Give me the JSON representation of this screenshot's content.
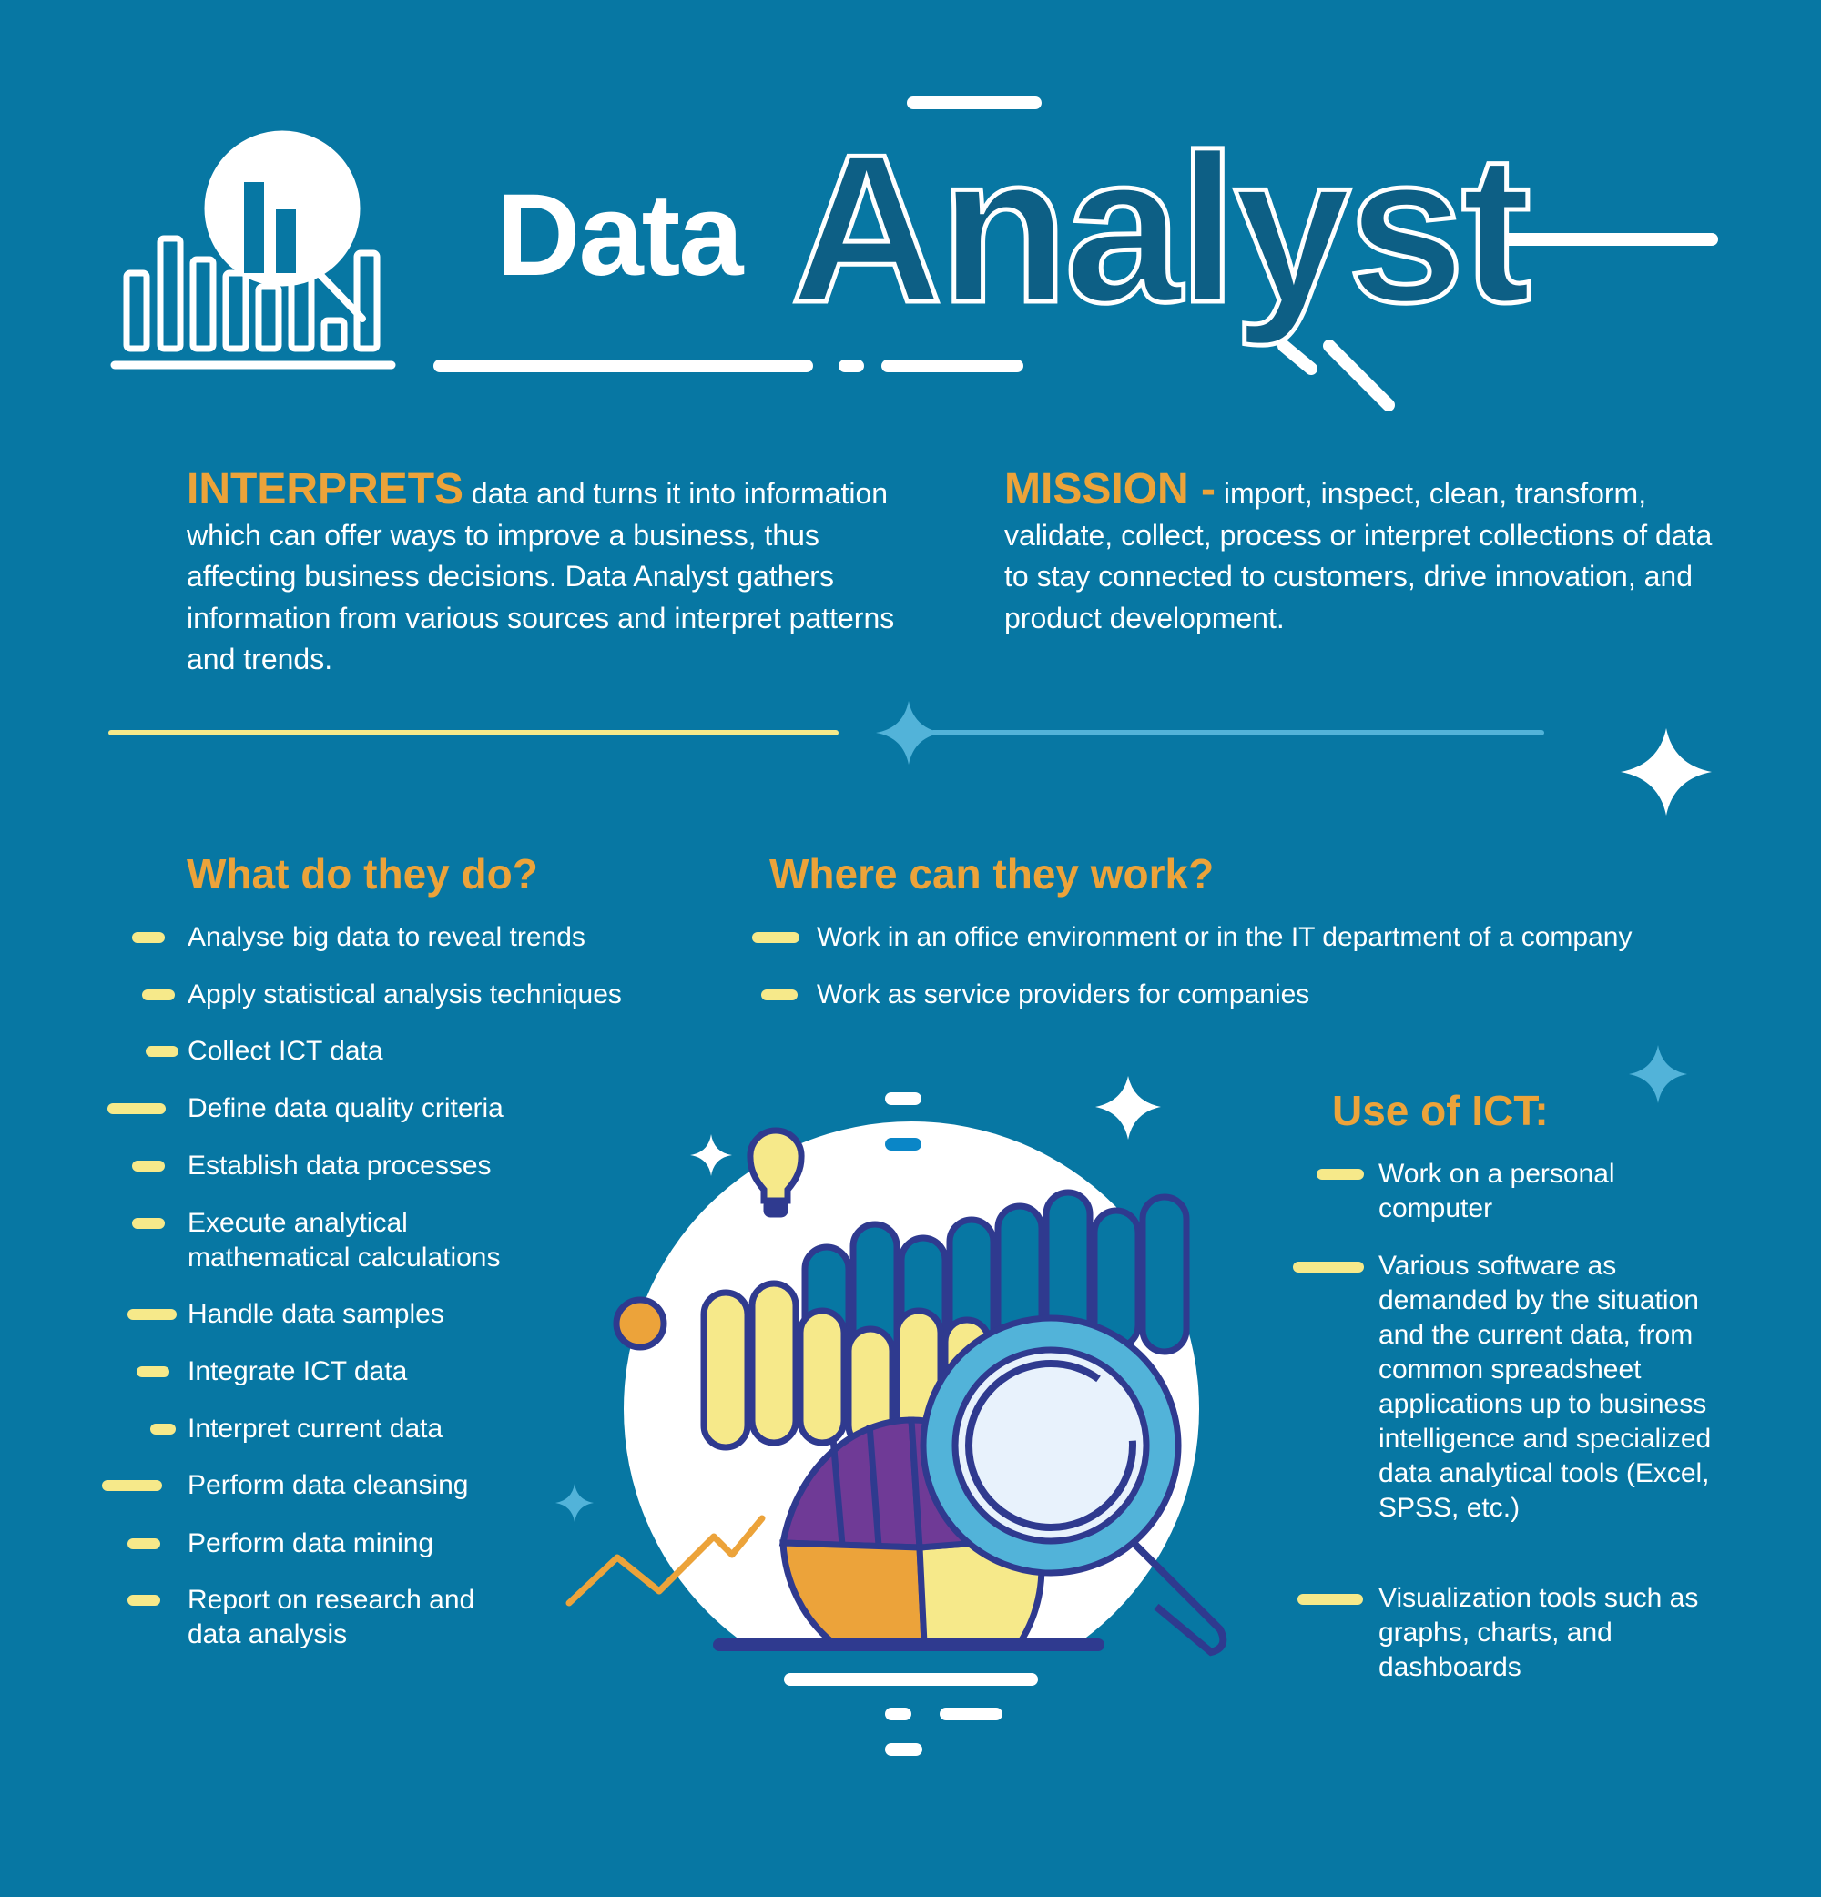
{
  "header": {
    "title_part1": "Data",
    "title_part2": "Analyst"
  },
  "interprets": {
    "keyword": "INTERPRETS",
    "text": "data and turns it into information which can offer ways to improve a business, thus affecting business decisions. Data Analyst gathers information from various sources and interpret patterns and trends."
  },
  "mission": {
    "keyword": "MISSION -",
    "text": "import, inspect, clean, transform, validate, collect, process or interpret collections of data to stay connected to customers, drive innovation, and product development."
  },
  "what": {
    "heading": "What do they do?",
    "items": [
      "Analyse big data to reveal trends",
      "Apply statistical analysis techniques",
      "Collect ICT data",
      "Define data quality criteria",
      "Establish data processes",
      "Execute analytical mathematical calculations",
      "Handle data samples",
      "Integrate ICT data",
      "Interpret current data",
      "Perform data cleansing",
      "Perform data mining",
      "Report on research and data analysis"
    ]
  },
  "where": {
    "heading": "Where can they work?",
    "items": [
      "Work in an office environment or in the IT department of a company",
      "Work as service providers for companies"
    ]
  },
  "ict": {
    "heading": "Use of ICT:",
    "items": [
      "Work on a personal computer",
      "Various software as demanded by the situation and the current data, from common spreadsheet applications up to business intelligence and specialized data analytical tools (Excel, SPSS, etc.)",
      "Visualization tools such as graphs, charts, and dashboards"
    ]
  },
  "colors": {
    "background": "#0777a3",
    "accent_orange": "#eca33a",
    "accent_yellow": "#f6e98a",
    "navy": "#2f3a8f",
    "light_blue": "#52b3d9",
    "purple": "#6f3a96"
  },
  "icons": [
    "bar-chart-magnifier-logo",
    "sparkle",
    "lightbulb",
    "pie-chart",
    "magnifying-glass",
    "zigzag-line"
  ]
}
